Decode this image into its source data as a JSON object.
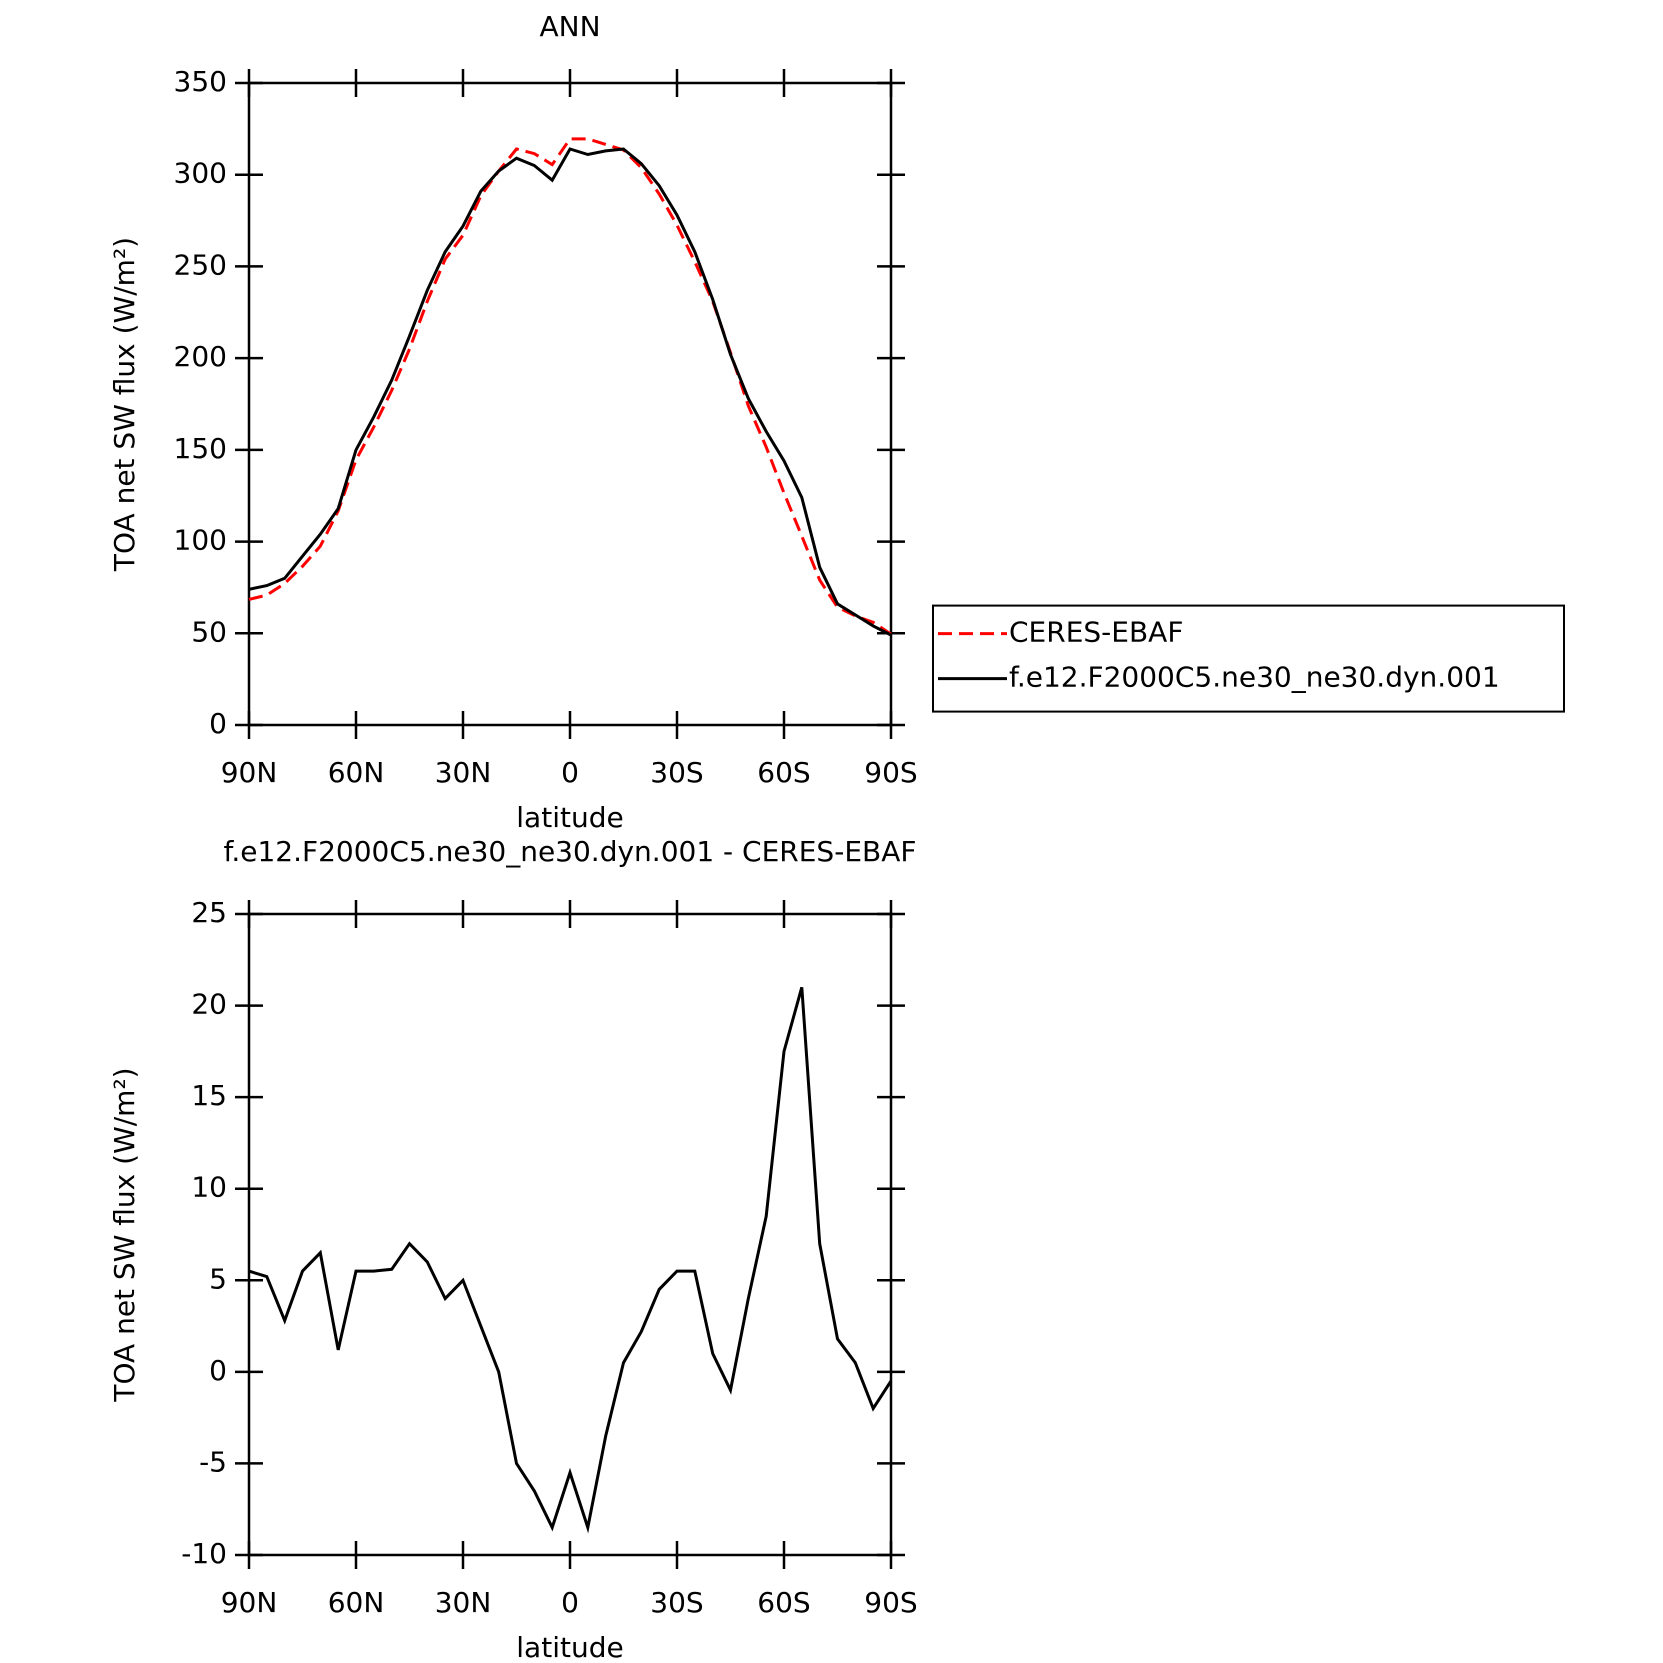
{
  "chart_data": [
    {
      "type": "line",
      "title": "ANN",
      "xlabel": "latitude",
      "ylabel": "TOA net SW flux (W/m²)",
      "x": [
        90,
        85,
        80,
        75,
        70,
        65,
        60,
        55,
        50,
        45,
        40,
        35,
        30,
        25,
        20,
        15,
        10,
        5,
        0,
        -5,
        -10,
        -15,
        -20,
        -25,
        -30,
        -35,
        -40,
        -45,
        -50,
        -55,
        -60,
        -65,
        -70,
        -75,
        -80,
        -85,
        -90
      ],
      "series": [
        {
          "name": "CERES-EBAF",
          "color": "#ff0000",
          "linestyle": "dashed",
          "values": [
            68.5,
            70.8,
            77.2,
            86.5,
            97.5,
            116.8,
            144.5,
            162.5,
            182.4,
            205,
            231,
            254,
            267,
            288.5,
            302,
            314,
            311.5,
            305.5,
            319.5,
            319.5,
            316.5,
            313.5,
            303.8,
            289.5,
            272.5,
            252.5,
            231,
            203,
            174,
            151.5,
            126.5,
            103,
            79,
            64.2,
            59.5,
            56,
            49.5
          ]
        },
        {
          "name": "f.e12.F2000C5.ne30_ne30.dyn.001",
          "color": "#000000",
          "linestyle": "solid",
          "values": [
            74,
            76,
            80,
            92,
            104,
            118,
            150,
            168,
            188,
            212,
            237,
            258,
            272,
            291,
            302,
            309,
            305,
            297,
            314,
            311,
            313,
            314,
            306,
            294,
            278,
            258,
            232,
            202,
            178,
            160,
            144,
            124,
            86,
            66,
            60,
            54,
            49
          ]
        }
      ],
      "xlim": [
        90,
        -90
      ],
      "xticks": [
        {
          "value": 90,
          "label": "90N"
        },
        {
          "value": 60,
          "label": "60N"
        },
        {
          "value": 30,
          "label": "30N"
        },
        0,
        {
          "value": -30,
          "label": "30S"
        },
        {
          "value": -60,
          "label": "60S"
        },
        {
          "value": -90,
          "label": "90S"
        }
      ],
      "ylim": [
        0,
        350
      ],
      "yticks": [
        0,
        50,
        100,
        150,
        200,
        250,
        300,
        350
      ],
      "legend": "right"
    },
    {
      "type": "line",
      "title": "f.e12.F2000C5.ne30_ne30.dyn.001 - CERES-EBAF",
      "xlabel": "latitude",
      "ylabel": "TOA net SW flux (W/m²)",
      "x": [
        90,
        85,
        80,
        75,
        70,
        65,
        60,
        55,
        50,
        45,
        40,
        35,
        30,
        25,
        20,
        15,
        10,
        5,
        0,
        -5,
        -10,
        -15,
        -20,
        -25,
        -30,
        -35,
        -40,
        -45,
        -50,
        -55,
        -60,
        -65,
        -70,
        -75,
        -80,
        -85,
        -90
      ],
      "series": [
        {
          "color": "#000000",
          "linestyle": "solid",
          "values": [
            5.5,
            5.2,
            2.8,
            5.5,
            6.5,
            1.2,
            5.5,
            5.5,
            5.6,
            7.0,
            6.0,
            4.0,
            5.0,
            2.5,
            0,
            -5.0,
            -6.5,
            -8.5,
            -5.5,
            -8.5,
            -3.5,
            0.5,
            2.2,
            4.5,
            5.5,
            5.5,
            1.0,
            -1.0,
            4.0,
            8.5,
            17.5,
            21.0,
            7.0,
            1.8,
            0.5,
            -2.0,
            -0.5
          ]
        }
      ],
      "xlim": [
        90,
        -90
      ],
      "xticks": [
        {
          "value": 90,
          "label": "90N"
        },
        {
          "value": 60,
          "label": "60N"
        },
        {
          "value": 30,
          "label": "30N"
        },
        0,
        {
          "value": -30,
          "label": "30S"
        },
        {
          "value": -60,
          "label": "60S"
        },
        {
          "value": -90,
          "label": "90S"
        }
      ],
      "ylim": [
        -10,
        25
      ],
      "yticks": [
        -10,
        -5,
        0,
        5,
        10,
        15,
        20,
        25
      ]
    }
  ]
}
